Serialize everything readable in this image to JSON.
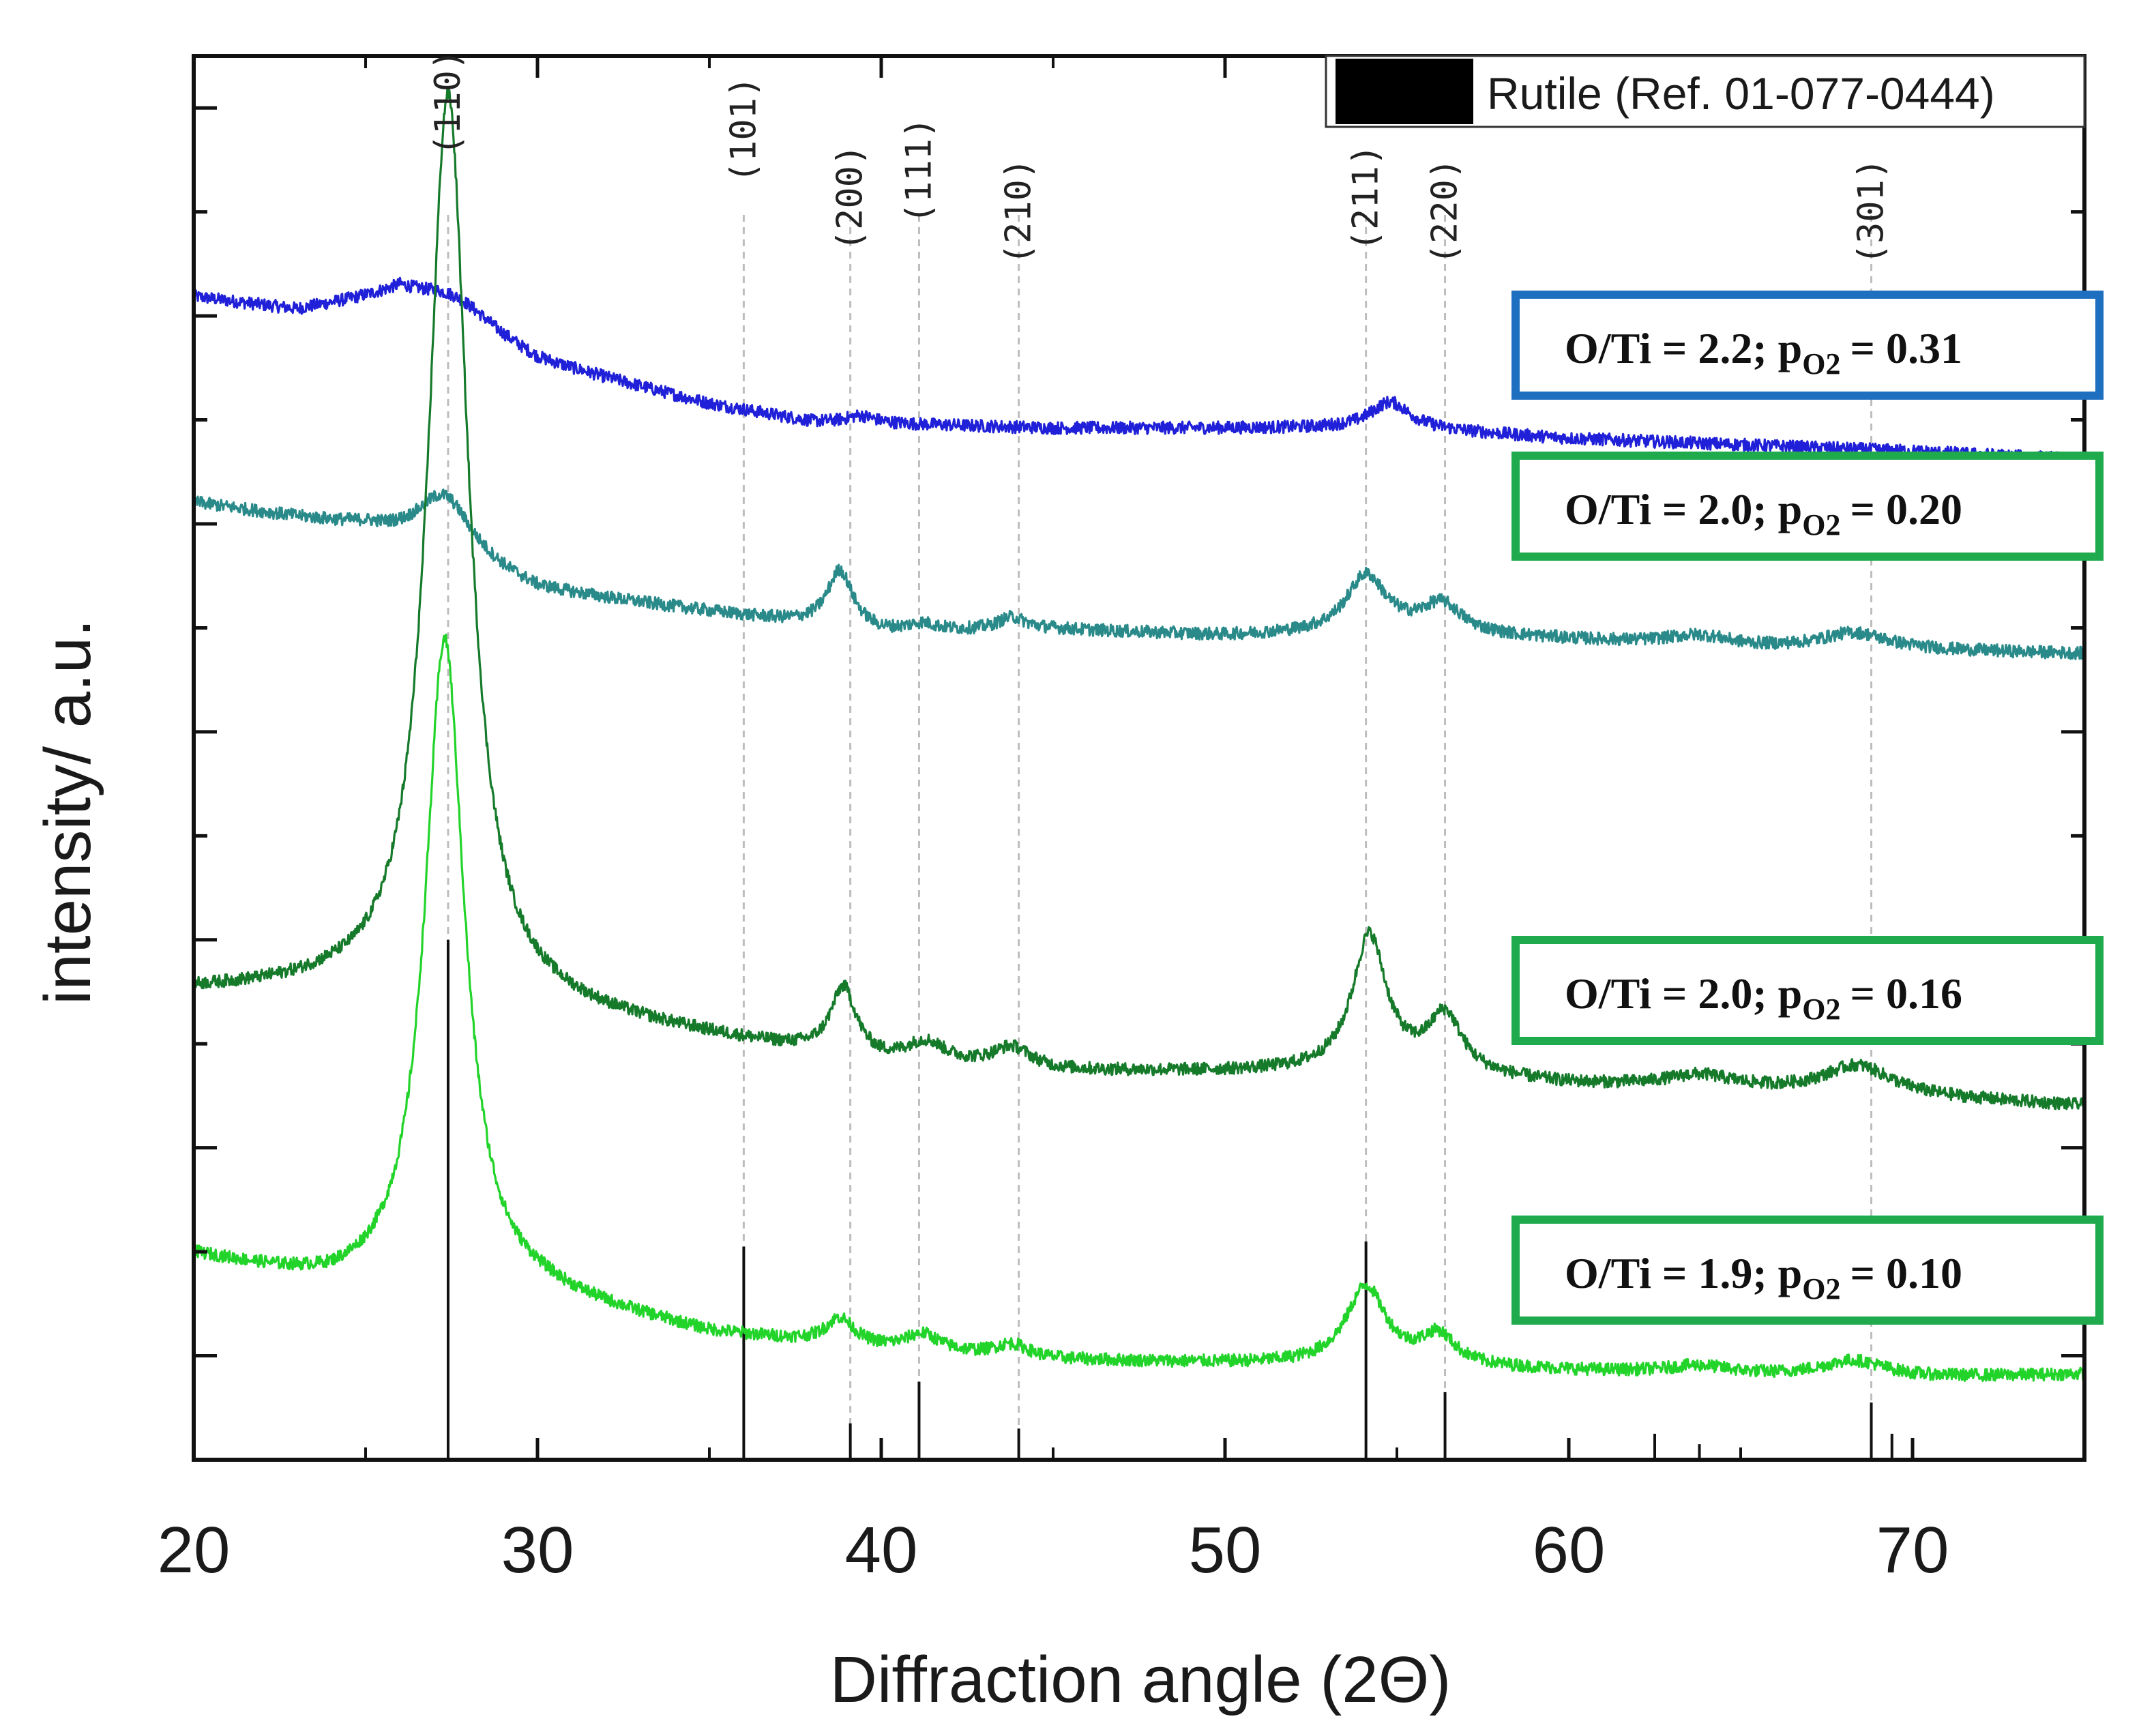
{
  "chart_data": {
    "type": "line",
    "title": "",
    "xlabel": "Diffraction angle (2Θ)",
    "ylabel": "intensity/ a.u.",
    "xlim": [
      20,
      75
    ],
    "ylim": [
      0,
      13.5
    ],
    "x_ticks": [
      20,
      30,
      40,
      50,
      60,
      70
    ],
    "x_tick_labels": [
      "20",
      "30",
      "40",
      "50",
      "60",
      "70"
    ],
    "legend": {
      "position": "top-right",
      "label": "Rutile (Ref. 01-077-0444)",
      "swatch_color": "#000000"
    },
    "reference_peaks": {
      "name": "Rutile (Ref. 01-077-0444)",
      "positions": [
        27.4,
        36.0,
        39.1,
        41.1,
        44.0,
        54.1,
        56.4,
        62.5,
        63.8,
        68.8,
        69.4
      ],
      "relative_intensity": [
        100,
        41,
        7,
        15,
        6,
        42,
        13,
        5,
        3,
        11,
        5
      ]
    },
    "hkl_annotations": [
      {
        "label": "(110)",
        "x": 27.4
      },
      {
        "label": "(101)",
        "x": 36.0
      },
      {
        "label": "(200)",
        "x": 39.1
      },
      {
        "label": "(111)",
        "x": 41.1
      },
      {
        "label": "(210)",
        "x": 44.0
      },
      {
        "label": "(211)",
        "x": 54.1
      },
      {
        "label": "(220)",
        "x": 56.4
      },
      {
        "label": "(301)",
        "x": 68.8
      }
    ],
    "series": [
      {
        "name": "O/Ti = 2.2; pO2 = 0.31",
        "label_main": "O/Ti = 2.2; p",
        "label_sub": "O2",
        "label_value": "=  0.31",
        "color": "#2020d8",
        "box_color": "#1f6fc0",
        "baseline": [
          [
            20,
            11.18
          ],
          [
            23,
            11.05
          ],
          [
            26,
            11.2
          ],
          [
            30,
            10.55
          ],
          [
            35,
            10.15
          ],
          [
            38,
            9.98
          ],
          [
            45,
            9.92
          ],
          [
            55,
            9.92
          ],
          [
            60,
            9.82
          ],
          [
            65,
            9.76
          ],
          [
            70,
            9.7
          ],
          [
            75,
            9.62
          ]
        ],
        "peaks": [
          [
            27.6,
            0.25,
            1.4
          ],
          [
            39.4,
            0.07,
            0.5
          ],
          [
            54.8,
            0.25,
            0.7
          ]
        ]
      },
      {
        "name": "O/Ti = 2.0; pO2 = 0.20",
        "label_main": "O/Ti = 2.0; p",
        "label_sub": "O2",
        "label_value": "=  0.20",
        "color": "#2a8a8a",
        "box_color": "#1faa4e",
        "baseline": [
          [
            20,
            9.2
          ],
          [
            22,
            9.1
          ],
          [
            25,
            8.95
          ],
          [
            30,
            8.35
          ],
          [
            35,
            8.15
          ],
          [
            40,
            7.95
          ],
          [
            45,
            7.98
          ],
          [
            50,
            7.92
          ],
          [
            55,
            7.95
          ],
          [
            60,
            7.88
          ],
          [
            65,
            7.8
          ],
          [
            70,
            7.78
          ],
          [
            75,
            7.75
          ]
        ],
        "peaks": [
          [
            27.3,
            0.6,
            1.0
          ],
          [
            38.8,
            0.55,
            0.45
          ],
          [
            41.2,
            0.07,
            0.5
          ],
          [
            43.8,
            0.12,
            0.5
          ],
          [
            54.1,
            0.55,
            0.7
          ],
          [
            56.3,
            0.28,
            0.7
          ],
          [
            63.8,
            0.1,
            1.2
          ],
          [
            68.3,
            0.16,
            1.2
          ]
        ]
      },
      {
        "name": "O/Ti = 2.0; pO2 = 0.16",
        "label_main": "O/Ti = 2.0; p",
        "label_sub": "O2",
        "label_value": "=  0.16",
        "color": "#157a2a",
        "box_color": "#1faa4e",
        "baseline": [
          [
            20,
            4.5
          ],
          [
            24,
            4.5
          ],
          [
            30,
            4.3
          ],
          [
            35,
            4.05
          ],
          [
            40,
            3.8
          ],
          [
            45,
            3.72
          ],
          [
            50,
            3.72
          ],
          [
            55,
            3.72
          ],
          [
            60,
            3.6
          ],
          [
            65,
            3.55
          ],
          [
            70,
            3.48
          ],
          [
            75,
            3.4
          ]
        ],
        "peaks": [
          [
            27.4,
            8.75,
            0.72
          ],
          [
            38.9,
            0.65,
            0.45
          ],
          [
            41.3,
            0.2,
            0.7
          ],
          [
            43.8,
            0.2,
            0.7
          ],
          [
            54.2,
            1.3,
            0.6
          ],
          [
            56.4,
            0.55,
            0.6
          ],
          [
            63.8,
            0.12,
            1.2
          ],
          [
            68.4,
            0.28,
            1.2
          ]
        ]
      },
      {
        "name": "O/Ti = 1.9; pO2 = 0.10",
        "label_main": "O/Ti = 1.9; p",
        "label_sub": "O2",
        "label_value": "=  0.10",
        "color": "#22d42a",
        "box_color": "#1faa4e",
        "baseline": [
          [
            20,
            1.95
          ],
          [
            24,
            1.65
          ],
          [
            30,
            1.55
          ],
          [
            35,
            1.2
          ],
          [
            40,
            1.05
          ],
          [
            45,
            0.95
          ],
          [
            50,
            0.92
          ],
          [
            55,
            0.9
          ],
          [
            60,
            0.85
          ],
          [
            65,
            0.8
          ],
          [
            70,
            0.78
          ],
          [
            75,
            0.82
          ]
        ],
        "peaks": [
          [
            27.3,
            6.3,
            0.7
          ],
          [
            38.8,
            0.25,
            0.5
          ],
          [
            41.2,
            0.16,
            0.6
          ],
          [
            43.8,
            0.12,
            0.6
          ],
          [
            54.1,
            0.75,
            0.7
          ],
          [
            56.2,
            0.28,
            0.6
          ],
          [
            63.8,
            0.08,
            1.2
          ],
          [
            68.3,
            0.16,
            1.2
          ]
        ]
      }
    ]
  }
}
